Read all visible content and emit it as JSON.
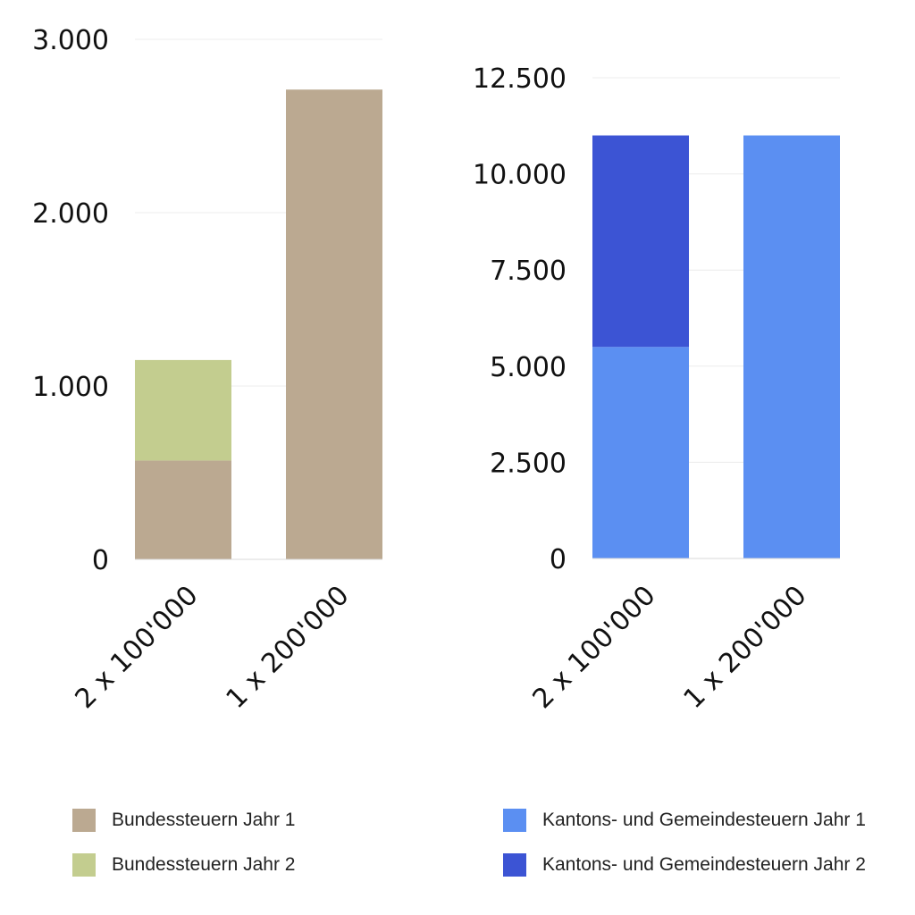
{
  "chart_data": [
    {
      "type": "bar",
      "stacked": true,
      "categories": [
        "2 x 100'000",
        "1 x 200'000"
      ],
      "series": [
        {
          "name": "Bundessteuern Jahr 1",
          "color": "#bba991",
          "values": [
            570,
            2710
          ]
        },
        {
          "name": "Bundessteuern Jahr 2",
          "color": "#c3cd8f",
          "values": [
            580,
            0
          ]
        }
      ],
      "ylim": [
        0,
        3000
      ],
      "yticks": [
        0,
        1000,
        2000,
        3000
      ],
      "ytick_labels": [
        "0",
        "1.000",
        "2.000",
        "3.000"
      ],
      "grid": true,
      "title": "",
      "xlabel": "",
      "ylabel": ""
    },
    {
      "type": "bar",
      "stacked": true,
      "categories": [
        "2 x 100'000",
        "1 x 200'000"
      ],
      "series": [
        {
          "name": "Kantons- und Gemeindesteuern Jahr 1",
          "color": "#5b8ff2",
          "values": [
            5500,
            11000
          ]
        },
        {
          "name": "Kantons- und Gemeindesteuern Jahr 2",
          "color": "#3c54d4",
          "values": [
            5500,
            0
          ]
        }
      ],
      "ylim": [
        0,
        12500
      ],
      "yticks": [
        0,
        2500,
        5000,
        7500,
        10000,
        12500
      ],
      "ytick_labels": [
        "0",
        "2.500",
        "5.000",
        "7.500",
        "10.000",
        "12.500"
      ],
      "grid": true,
      "title": "",
      "xlabel": "",
      "ylabel": ""
    }
  ],
  "legend_left": [
    {
      "label": "Bundessteuern Jahr 1",
      "color": "#bba991"
    },
    {
      "label": "Bundessteuern Jahr 2",
      "color": "#c3cd8f"
    }
  ],
  "legend_right": [
    {
      "label": "Kantons- und Gemeindesteuern Jahr 1",
      "color": "#5b8ff2"
    },
    {
      "label": "Kantons- und Gemeindesteuern Jahr 2",
      "color": "#3c54d4"
    }
  ]
}
